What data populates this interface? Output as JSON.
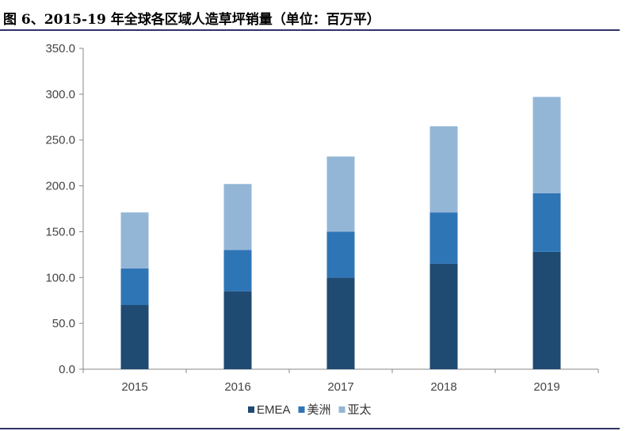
{
  "title": "图 6、2015-19 年全球各区域人造草坪销量（单位：百万平）",
  "chart_data": {
    "type": "bar",
    "stacked": true,
    "title": "图 6、2015-19 年全球各区域人造草坪销量（单位：百万平）",
    "categories": [
      "2015",
      "2016",
      "2017",
      "2018",
      "2019"
    ],
    "series": [
      {
        "name": "EMEA",
        "color": "#1f4a72",
        "values": [
          70,
          85,
          100,
          115,
          128
        ]
      },
      {
        "name": "美洲",
        "color": "#2e75b6",
        "values": [
          40,
          45,
          50,
          56,
          64
        ]
      },
      {
        "name": "亚太",
        "color": "#94b6d6",
        "values": [
          61,
          72,
          82,
          94,
          105
        ]
      }
    ],
    "ylim": [
      0,
      350
    ],
    "yticks": [
      "0.0",
      "50.0",
      "100.0",
      "150.0",
      "200.0",
      "250.0",
      "300.0",
      "350.0"
    ],
    "xlabel": "",
    "ylabel": "",
    "grid": false,
    "legend": "bottom"
  }
}
